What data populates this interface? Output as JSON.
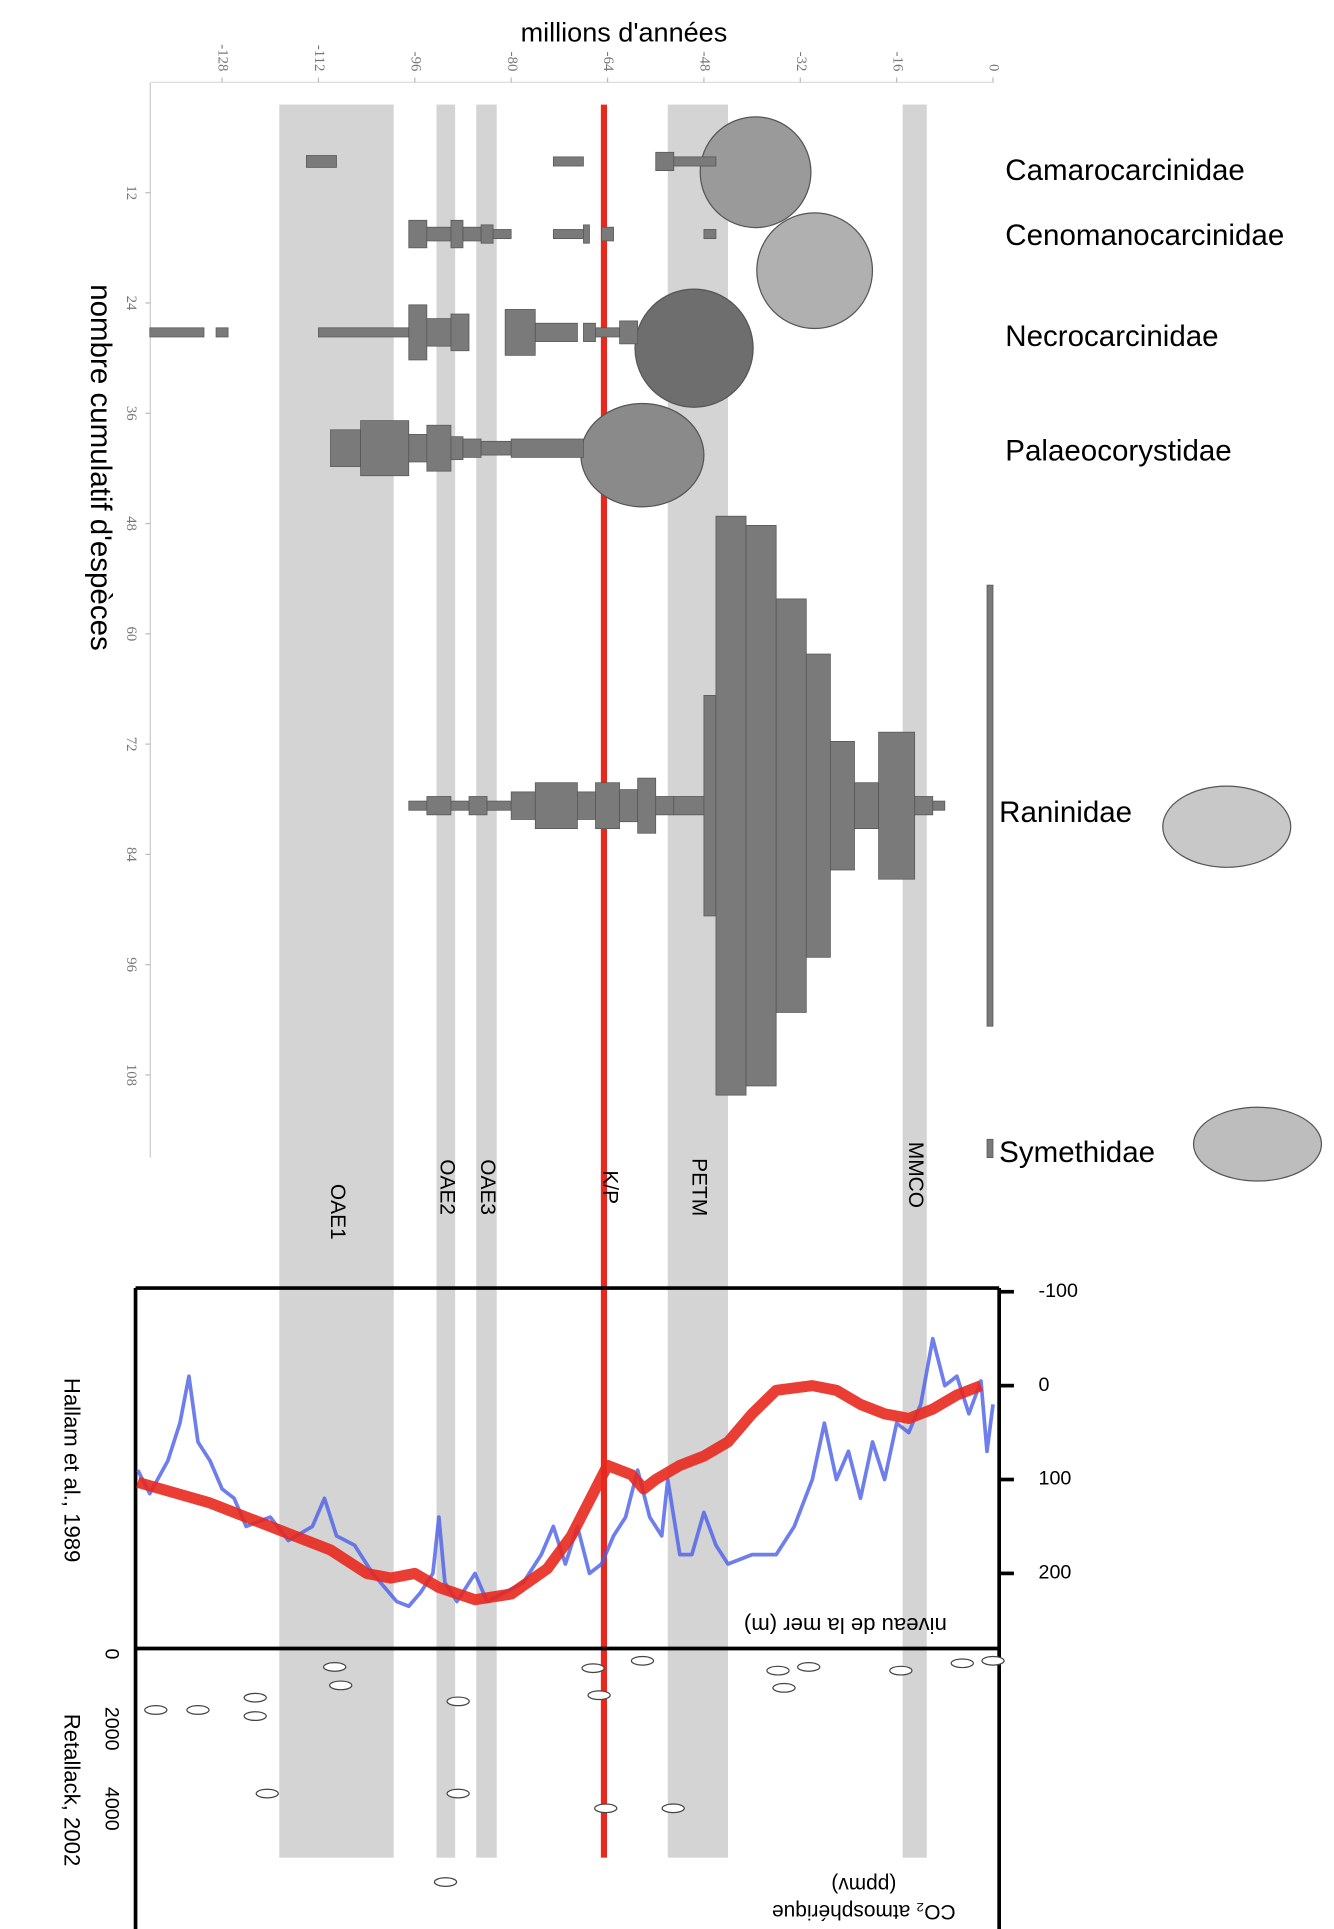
{
  "chart_data": [
    {
      "type": "spindle",
      "xlabel": "millions d'années",
      "ylabel": "nombre cumulatif d'espèces",
      "xlim": [
        -144,
        0
      ],
      "xticks": [
        -128,
        -112,
        -96,
        -80,
        -64,
        -48,
        -32,
        -16,
        0
      ],
      "ylim": [
        0,
        117
      ],
      "yticks": [
        12,
        24,
        36,
        48,
        60,
        72,
        84,
        96,
        108
      ],
      "invert_y": true,
      "color": "#7a7a7a",
      "events": [
        {
          "label": "OAE1",
          "start": -118.5,
          "end": -99.5
        },
        {
          "label": "OAE2",
          "start": -92.4,
          "end": -89.3
        },
        {
          "label": "OAE3",
          "start": -85.8,
          "end": -82.4
        },
        {
          "label": "PETM",
          "start": -54,
          "end": -44
        },
        {
          "label": "MMCO",
          "start": -15,
          "end": -11
        }
      ],
      "event_color": "#d4d4d4",
      "boundary": {
        "label": "K/P",
        "value": -64.6,
        "color": "#e8281e"
      },
      "series": [
        {
          "name": "Camarocarcinidae",
          "center": 8.6,
          "segments": [
            [
              -114,
              -109,
              1.3
            ],
            [
              -73,
              -68,
              1
            ],
            [
              -56,
              -53,
              2
            ],
            [
              -53,
              -46,
              1
            ]
          ]
        },
        {
          "name": "Cenomanocarcinidae",
          "center": 16.5,
          "segments": [
            [
              -97,
              -94,
              3
            ],
            [
              -94,
              -90,
              1.5
            ],
            [
              -90,
              -88,
              3
            ],
            [
              -88,
              -85,
              1.5
            ],
            [
              -85,
              -83,
              2
            ],
            [
              -83,
              -80,
              1
            ],
            [
              -73,
              -68,
              1
            ],
            [
              -68,
              -67,
              2
            ],
            [
              -65,
              -63,
              1.5
            ],
            [
              -48,
              -46,
              1
            ]
          ]
        },
        {
          "name": "Necrocarcinidae",
          "center": 27.2,
          "segments": [
            [
              -140,
              -131,
              1
            ],
            [
              -129,
              -127,
              1
            ],
            [
              -112,
              -97,
              1
            ],
            [
              -97,
              -94,
              6
            ],
            [
              -94,
              -90,
              3
            ],
            [
              -90,
              -87,
              4
            ],
            [
              -81,
              -76,
              5
            ],
            [
              -76,
              -69,
              2
            ],
            [
              -68,
              -66,
              2
            ],
            [
              -66,
              -62,
              1
            ],
            [
              -62,
              -59,
              2.5
            ]
          ]
        },
        {
          "name": "Palaeocorystidae",
          "center": 39.8,
          "segments": [
            [
              -110,
              -105,
              4
            ],
            [
              -105,
              -97,
              6
            ],
            [
              -97,
              -94,
              3
            ],
            [
              -94,
              -90,
              5
            ],
            [
              -90,
              -88,
              2.5
            ],
            [
              -88,
              -85,
              2
            ],
            [
              -85,
              -80,
              1.5
            ],
            [
              -80,
              -68,
              2
            ]
          ]
        },
        {
          "name": "Raninidae",
          "center": 78.7,
          "segments": [
            [
              -97,
              -94,
              1
            ],
            [
              -94,
              -90,
              2
            ],
            [
              -90,
              -87,
              1
            ],
            [
              -87,
              -84,
              2
            ],
            [
              -84,
              -80,
              1
            ],
            [
              -80,
              -76,
              3
            ],
            [
              -76,
              -69,
              5
            ],
            [
              -69,
              -66,
              3
            ],
            [
              -66,
              -62,
              5
            ],
            [
              -62,
              -59,
              3.5
            ],
            [
              -59,
              -56,
              6
            ],
            [
              -56,
              -53,
              2
            ],
            [
              -53,
              -48,
              2
            ],
            [
              -48,
              -46,
              24
            ],
            [
              -46,
              -41,
              63
            ],
            [
              -41,
              -36,
              61
            ],
            [
              -36,
              -31,
              45
            ],
            [
              -31,
              -27,
              33
            ],
            [
              -27,
              -23,
              14
            ],
            [
              -23,
              -19,
              5
            ],
            [
              -19,
              -13,
              16
            ],
            [
              -13,
              -10,
              2
            ],
            [
              -10,
              -8,
              1
            ],
            [
              -1,
              0,
              48
            ]
          ]
        },
        {
          "name": "Symethidae",
          "center": 116,
          "segments": [
            [
              -1,
              0,
              2
            ]
          ]
        }
      ]
    },
    {
      "type": "line",
      "ylabel": "niveau de la mer (m)",
      "source": "Hallam et al., 1989",
      "xlim": [
        -144,
        0
      ],
      "ylim": [
        -100,
        280
      ],
      "yticks": [
        -100,
        0,
        100,
        200
      ],
      "invert_y": true,
      "series": [
        {
          "color": "#4a5ee8",
          "x": [
            -142,
            -140,
            -137,
            -135,
            -133.5,
            -132,
            -130,
            -128,
            -126,
            -124,
            -120,
            -117,
            -113,
            -111,
            -109,
            -106,
            -103,
            -101,
            -99,
            -97,
            -95,
            -93,
            -92,
            -91,
            -89,
            -86,
            -84,
            -81,
            -78,
            -75,
            -73,
            -71,
            -69,
            -67,
            -65,
            -63,
            -61,
            -59,
            -57,
            -55,
            -54,
            -52,
            -50,
            -48,
            -46,
            -44,
            -40,
            -36,
            -33,
            -30,
            -28,
            -26,
            -24,
            -22,
            -20,
            -18,
            -16,
            -14,
            -12,
            -10,
            -8,
            -6,
            -4,
            -2,
            -1,
            0
          ],
          "values": [
            90,
            115,
            80,
            40,
            -10,
            60,
            80,
            110,
            120,
            150,
            140,
            165,
            150,
            120,
            160,
            170,
            200,
            215,
            230,
            235,
            220,
            200,
            140,
            210,
            230,
            200,
            230,
            220,
            210,
            180,
            150,
            190,
            150,
            200,
            190,
            160,
            140,
            90,
            140,
            160,
            100,
            180,
            180,
            135,
            170,
            190,
            180,
            180,
            150,
            100,
            40,
            100,
            70,
            120,
            60,
            100,
            40,
            50,
            20,
            -50,
            0,
            -10,
            30,
            -5,
            70,
            20
          ]
        },
        {
          "color": "#e8281e",
          "x": [
            -142,
            -130,
            -120,
            -110,
            -104,
            -100,
            -96,
            -92,
            -86,
            -80,
            -74,
            -70,
            -66,
            -64,
            -60,
            -58,
            -56,
            -52,
            -48,
            -44,
            -40,
            -36,
            -30,
            -26,
            -22,
            -18,
            -14,
            -10,
            -6,
            -2
          ],
          "values": [
            103,
            125,
            150,
            175,
            200,
            205,
            200,
            215,
            228,
            222,
            195,
            160,
            110,
            85,
            95,
            110,
            100,
            85,
            75,
            60,
            30,
            5,
            0,
            5,
            20,
            30,
            35,
            25,
            10,
            0
          ]
        }
      ]
    },
    {
      "type": "scatter",
      "ylabel": [
        "CO₂ atmosphérique",
        "(ppmv)"
      ],
      "source": "Retallack, 2002",
      "xlim": [
        -144,
        0
      ],
      "ylim": [
        0,
        7000
      ],
      "yticks": [
        0,
        2000,
        4000
      ],
      "invert_y": true,
      "x": [
        -139,
        -132,
        -122.5,
        -122.5,
        -109.3,
        -108.3,
        -120.5,
        -88.8,
        -88.8,
        -90.9,
        -66.4,
        -65.4,
        -64.3,
        -58.2,
        -53.1,
        -35.7,
        -30.6,
        -34.7,
        -15.3,
        -5.1,
        0
      ],
      "values": [
        1534,
        1534,
        1227,
        1687,
        460,
        920,
        3620,
        1319,
        3620,
        5828,
        491,
        1166,
        3988,
        307,
        3988,
        552,
        460,
        982,
        552,
        368,
        307
      ]
    }
  ]
}
